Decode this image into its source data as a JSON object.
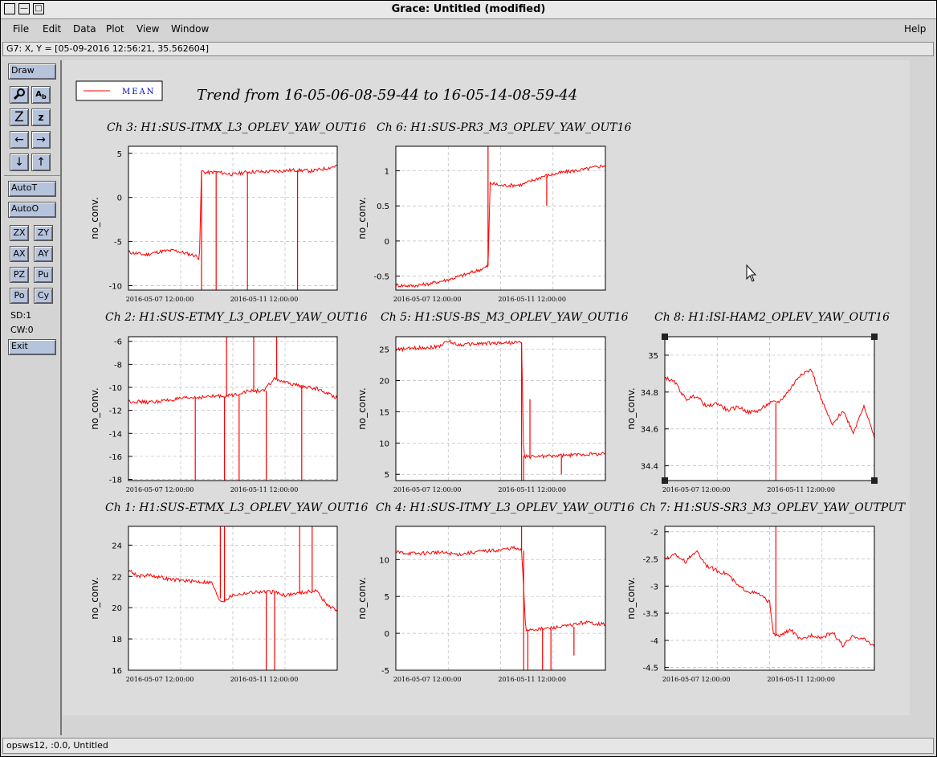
{
  "window": {
    "title": "Grace: Untitled (modified)",
    "controls": [
      "—",
      "□"
    ]
  },
  "menubar": {
    "items": [
      "File",
      "Edit",
      "Data",
      "Plot",
      "View",
      "Window"
    ],
    "help": "Help"
  },
  "locator": {
    "text": "G7: X, Y = [05-09-2016 12:56:21, 35.562604]"
  },
  "toolbar": {
    "draw": "Draw",
    "autot": "AutoT",
    "autoo": "AutoO",
    "zx": "ZX",
    "zy": "ZY",
    "ax": "AX",
    "ay": "AY",
    "pz": "PZ",
    "pu": "Pu",
    "po": "Po",
    "cy": "Cy",
    "sd": "SD:1",
    "cw": "CW:0",
    "exit": "Exit",
    "icons": [
      "zoom-icon",
      "text-icon",
      "zoom-in-z-icon",
      "zoom-out-z-icon",
      "left-arrow-icon",
      "right-arrow-icon",
      "down-arrow-icon",
      "up-arrow-icon"
    ]
  },
  "status": {
    "text": "opsws12, :0.0, Untitled"
  },
  "legend": {
    "label": "MEAN",
    "color": "#ff0000"
  },
  "main_title": "Trend from 16-05-06-08-59-44 to 16-05-14-08-59-44",
  "chart_data": [
    {
      "type": "line",
      "title": "Ch 3: H1:SUS-ITMX_L3_OPLEV_YAW_OUT16",
      "ylabel": "no_conv.",
      "ylim": [
        -10.5,
        5.8
      ],
      "yticks": [
        5,
        0,
        -5,
        -10
      ],
      "xtick_labels": [
        "2016-05-07 12:00:00",
        "2016-05-11 12:00:00"
      ],
      "x": [
        0,
        0.08,
        0.16,
        0.22,
        0.27,
        0.32,
        0.34,
        0.35,
        0.37,
        0.38,
        0.42,
        0.5,
        0.57,
        0.65,
        0.72,
        0.8,
        0.88,
        0.95,
        1.0
      ],
      "values": [
        -6.2,
        -6.5,
        -6.1,
        -6.0,
        -6.3,
        -6.6,
        -6.9,
        3.0,
        2.8,
        2.8,
        2.9,
        2.6,
        2.9,
        2.9,
        3.0,
        3.1,
        3.0,
        3.3,
        3.6
      ],
      "spikes": [
        {
          "x": 0.35,
          "y": -10.5
        },
        {
          "x": 0.42,
          "y": -10.5
        },
        {
          "x": 0.57,
          "y": -10.5
        },
        {
          "x": 0.81,
          "y": -10.5
        }
      ]
    },
    {
      "type": "line",
      "title": "Ch 6: H1:SUS-PR3_M3_OPLEV_YAW_OUT16",
      "ylabel": "no_conv.",
      "ylim": [
        -0.7,
        1.35
      ],
      "yticks": [
        1,
        0.5,
        0,
        -0.5
      ],
      "xtick_labels": [
        "2016-05-07 12:00:00",
        "2016-05-11 12:00:00"
      ],
      "x": [
        0,
        0.08,
        0.16,
        0.25,
        0.33,
        0.4,
        0.44,
        0.45,
        0.46,
        0.5,
        0.6,
        0.7,
        0.8,
        0.9,
        1.0
      ],
      "values": [
        -0.63,
        -0.64,
        -0.61,
        -0.55,
        -0.48,
        -0.41,
        -0.36,
        0.82,
        0.82,
        0.79,
        0.8,
        0.92,
        0.98,
        1.02,
        1.08
      ],
      "spikes": [
        {
          "x": 0.44,
          "y": 1.35
        },
        {
          "x": 0.72,
          "y": 0.5
        }
      ]
    },
    {
      "type": "line",
      "title": "Ch 2: H1:SUS-ETMY_L3_OPLEV_YAW_OUT16",
      "ylabel": "no_conv.",
      "ylim": [
        -18.1,
        -5.6
      ],
      "yticks": [
        -6,
        -8,
        -10,
        -12,
        -14,
        -16,
        -18
      ],
      "xtick_labels": [
        "2016-05-07 12:00:00",
        "2016-05-11 12:00:00"
      ],
      "x": [
        0,
        0.1,
        0.2,
        0.3,
        0.4,
        0.5,
        0.55,
        0.6,
        0.65,
        0.7,
        0.75,
        0.8,
        0.85,
        0.9,
        1.0
      ],
      "values": [
        -11.2,
        -11.3,
        -11.1,
        -10.9,
        -10.8,
        -10.7,
        -10.4,
        -10.3,
        -10.3,
        -9.2,
        -9.6,
        -9.8,
        -10.0,
        -10.1,
        -10.9
      ],
      "spikes": [
        {
          "x": 0.32,
          "y": -18.1
        },
        {
          "x": 0.46,
          "y": -18.1
        },
        {
          "x": 0.47,
          "y": -5.6
        },
        {
          "x": 0.53,
          "y": -18.1
        },
        {
          "x": 0.6,
          "y": -5.6
        },
        {
          "x": 0.66,
          "y": -18.1
        },
        {
          "x": 0.71,
          "y": -5.6
        },
        {
          "x": 0.83,
          "y": -18.1
        }
      ]
    },
    {
      "type": "line",
      "title": "Ch 5: H1:SUS-BS_M3_OPLEV_YAW_OUT16",
      "ylabel": "no_conv.",
      "ylim": [
        4,
        27
      ],
      "yticks": [
        25,
        20,
        15,
        10,
        5
      ],
      "xtick_labels": [
        "2016-05-07 12:00:00",
        "2016-05-11 12:00:00"
      ],
      "x": [
        0,
        0.1,
        0.2,
        0.25,
        0.3,
        0.4,
        0.5,
        0.6,
        0.61,
        0.62,
        0.7,
        0.8,
        0.9,
        1.0
      ],
      "values": [
        24.9,
        25.2,
        25.4,
        26.3,
        25.7,
        25.9,
        26.0,
        26.1,
        8.0,
        7.8,
        7.9,
        8.0,
        8.2,
        8.3
      ],
      "spikes": [
        {
          "x": 0.6,
          "y": 4
        },
        {
          "x": 0.61,
          "y": 4
        },
        {
          "x": 0.64,
          "y": 17
        },
        {
          "x": 0.79,
          "y": 5
        }
      ]
    },
    {
      "type": "line",
      "title": "Ch 8: H1:ISI-HAM2_OPLEV_YAW_OUT16",
      "ylabel": "no_conv.",
      "ylim": [
        34.32,
        35.1
      ],
      "yticks": [
        35,
        34.8,
        34.6,
        34.4
      ],
      "xtick_labels": [
        "2016-05-07 12:00:00",
        "2016-05-11 12:00:00"
      ],
      "x": [
        0,
        0.05,
        0.1,
        0.15,
        0.2,
        0.25,
        0.3,
        0.35,
        0.4,
        0.45,
        0.5,
        0.55,
        0.6,
        0.65,
        0.7,
        0.75,
        0.8,
        0.85,
        0.9,
        0.95,
        1.0
      ],
      "values": [
        34.88,
        34.85,
        34.76,
        34.78,
        34.72,
        34.74,
        34.7,
        34.72,
        34.69,
        34.7,
        34.74,
        34.75,
        34.82,
        34.9,
        34.92,
        34.75,
        34.62,
        34.7,
        34.58,
        34.73,
        34.55
      ],
      "spikes": [
        {
          "x": 0.53,
          "y": 34.32
        }
      ]
    },
    {
      "type": "line",
      "title": "Ch 1: H1:SUS-ETMX_L3_OPLEV_YAW_OUT16",
      "ylabel": "no_conv.",
      "ylim": [
        16,
        25.2
      ],
      "yticks": [
        24,
        22,
        20,
        18,
        16
      ],
      "xtick_labels": [
        "2016-05-07 12:00:00",
        "2016-05-11 12:00:00"
      ],
      "x": [
        0,
        0.05,
        0.1,
        0.2,
        0.3,
        0.4,
        0.43,
        0.45,
        0.5,
        0.6,
        0.7,
        0.75,
        0.8,
        0.85,
        0.9,
        0.95,
        1.0
      ],
      "values": [
        22.4,
        22.0,
        22.1,
        21.8,
        21.7,
        21.6,
        20.6,
        20.4,
        20.8,
        21.0,
        21.0,
        20.8,
        20.9,
        21.0,
        21.1,
        20.2,
        19.8
      ],
      "spikes": [
        {
          "x": 0.44,
          "y": 25.2
        },
        {
          "x": 0.46,
          "y": 25.2
        },
        {
          "x": 0.66,
          "y": 16
        },
        {
          "x": 0.7,
          "y": 16
        },
        {
          "x": 0.82,
          "y": 25.2
        },
        {
          "x": 0.88,
          "y": 25.2
        }
      ]
    },
    {
      "type": "line",
      "title": "Ch 4: H1:SUS-ITMY_L3_OPLEV_YAW_OUT16",
      "ylabel": "no_conv.",
      "ylim": [
        -5,
        14.5
      ],
      "yticks": [
        10,
        5,
        0,
        -5
      ],
      "xtick_labels": [
        "2016-05-07 12:00:00",
        "2016-05-11 12:00:00"
      ],
      "x": [
        0,
        0.1,
        0.2,
        0.3,
        0.4,
        0.5,
        0.56,
        0.6,
        0.62,
        0.7,
        0.8,
        0.9,
        1.0
      ],
      "values": [
        11.0,
        10.8,
        11.0,
        10.7,
        11.1,
        11.3,
        11.6,
        11.2,
        0.5,
        0.6,
        0.9,
        1.5,
        1.2
      ],
      "spikes": [
        {
          "x": 0.6,
          "y": 14.5
        },
        {
          "x": 0.61,
          "y": -5
        },
        {
          "x": 0.63,
          "y": -5
        },
        {
          "x": 0.7,
          "y": -5
        },
        {
          "x": 0.74,
          "y": -5
        },
        {
          "x": 0.85,
          "y": -3
        }
      ]
    },
    {
      "type": "line",
      "title": "Ch 7: H1:SUS-SR3_M3_OPLEV_YAW_OUTPUT",
      "ylabel": "no_conv.",
      "ylim": [
        -4.55,
        -1.9
      ],
      "yticks": [
        -2,
        -2.5,
        -3,
        -3.5,
        -4,
        -4.5
      ],
      "xtick_labels": [
        "2016-05-07 12:00:00",
        "2016-05-11 12:00:00"
      ],
      "x": [
        0,
        0.05,
        0.1,
        0.15,
        0.2,
        0.25,
        0.3,
        0.35,
        0.4,
        0.45,
        0.5,
        0.52,
        0.55,
        0.6,
        0.65,
        0.7,
        0.75,
        0.8,
        0.85,
        0.9,
        0.95,
        1.0
      ],
      "values": [
        -2.5,
        -2.42,
        -2.55,
        -2.35,
        -2.62,
        -2.72,
        -2.78,
        -3.0,
        -3.1,
        -3.15,
        -3.3,
        -3.9,
        -3.92,
        -3.8,
        -4.0,
        -3.9,
        -3.95,
        -3.85,
        -4.1,
        -3.92,
        -3.98,
        -4.1
      ],
      "spikes": [
        {
          "x": 0.53,
          "y": -1.9
        }
      ]
    }
  ]
}
